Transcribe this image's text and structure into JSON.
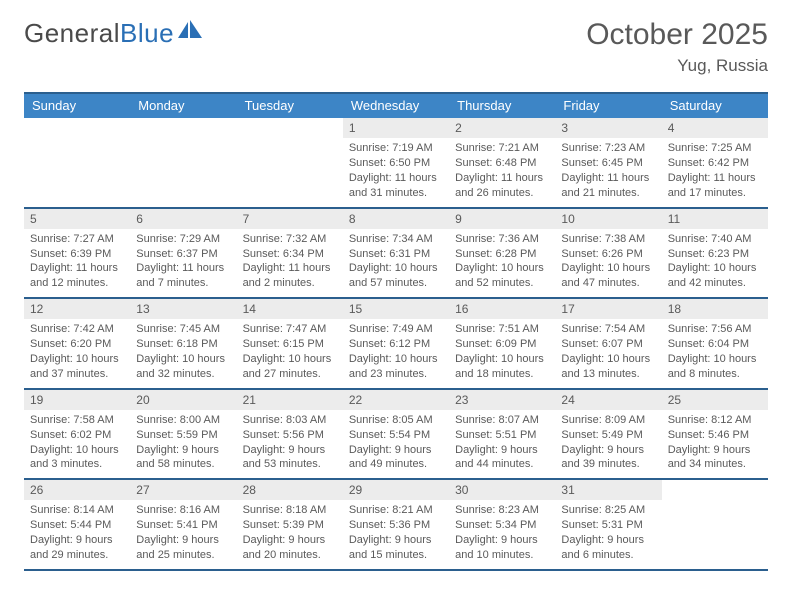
{
  "brand": {
    "part1": "General",
    "part2": "Blue"
  },
  "title": "October 2025",
  "location": "Yug, Russia",
  "colors": {
    "header_blue": "#3d85c6",
    "row_divider": "#2b5f8e",
    "light_grey": "#ececec",
    "text_grey": "#5a5a5a",
    "logo_blue": "#2a6fb5"
  },
  "dow": [
    "Sunday",
    "Monday",
    "Tuesday",
    "Wednesday",
    "Thursday",
    "Friday",
    "Saturday"
  ],
  "weeks": [
    [
      null,
      null,
      null,
      {
        "n": "1",
        "sr": "Sunrise: 7:19 AM",
        "ss": "Sunset: 6:50 PM",
        "d1": "Daylight: 11 hours",
        "d2": "and 31 minutes."
      },
      {
        "n": "2",
        "sr": "Sunrise: 7:21 AM",
        "ss": "Sunset: 6:48 PM",
        "d1": "Daylight: 11 hours",
        "d2": "and 26 minutes."
      },
      {
        "n": "3",
        "sr": "Sunrise: 7:23 AM",
        "ss": "Sunset: 6:45 PM",
        "d1": "Daylight: 11 hours",
        "d2": "and 21 minutes."
      },
      {
        "n": "4",
        "sr": "Sunrise: 7:25 AM",
        "ss": "Sunset: 6:42 PM",
        "d1": "Daylight: 11 hours",
        "d2": "and 17 minutes."
      }
    ],
    [
      {
        "n": "5",
        "sr": "Sunrise: 7:27 AM",
        "ss": "Sunset: 6:39 PM",
        "d1": "Daylight: 11 hours",
        "d2": "and 12 minutes."
      },
      {
        "n": "6",
        "sr": "Sunrise: 7:29 AM",
        "ss": "Sunset: 6:37 PM",
        "d1": "Daylight: 11 hours",
        "d2": "and 7 minutes."
      },
      {
        "n": "7",
        "sr": "Sunrise: 7:32 AM",
        "ss": "Sunset: 6:34 PM",
        "d1": "Daylight: 11 hours",
        "d2": "and 2 minutes."
      },
      {
        "n": "8",
        "sr": "Sunrise: 7:34 AM",
        "ss": "Sunset: 6:31 PM",
        "d1": "Daylight: 10 hours",
        "d2": "and 57 minutes."
      },
      {
        "n": "9",
        "sr": "Sunrise: 7:36 AM",
        "ss": "Sunset: 6:28 PM",
        "d1": "Daylight: 10 hours",
        "d2": "and 52 minutes."
      },
      {
        "n": "10",
        "sr": "Sunrise: 7:38 AM",
        "ss": "Sunset: 6:26 PM",
        "d1": "Daylight: 10 hours",
        "d2": "and 47 minutes."
      },
      {
        "n": "11",
        "sr": "Sunrise: 7:40 AM",
        "ss": "Sunset: 6:23 PM",
        "d1": "Daylight: 10 hours",
        "d2": "and 42 minutes."
      }
    ],
    [
      {
        "n": "12",
        "sr": "Sunrise: 7:42 AM",
        "ss": "Sunset: 6:20 PM",
        "d1": "Daylight: 10 hours",
        "d2": "and 37 minutes."
      },
      {
        "n": "13",
        "sr": "Sunrise: 7:45 AM",
        "ss": "Sunset: 6:18 PM",
        "d1": "Daylight: 10 hours",
        "d2": "and 32 minutes."
      },
      {
        "n": "14",
        "sr": "Sunrise: 7:47 AM",
        "ss": "Sunset: 6:15 PM",
        "d1": "Daylight: 10 hours",
        "d2": "and 27 minutes."
      },
      {
        "n": "15",
        "sr": "Sunrise: 7:49 AM",
        "ss": "Sunset: 6:12 PM",
        "d1": "Daylight: 10 hours",
        "d2": "and 23 minutes."
      },
      {
        "n": "16",
        "sr": "Sunrise: 7:51 AM",
        "ss": "Sunset: 6:09 PM",
        "d1": "Daylight: 10 hours",
        "d2": "and 18 minutes."
      },
      {
        "n": "17",
        "sr": "Sunrise: 7:54 AM",
        "ss": "Sunset: 6:07 PM",
        "d1": "Daylight: 10 hours",
        "d2": "and 13 minutes."
      },
      {
        "n": "18",
        "sr": "Sunrise: 7:56 AM",
        "ss": "Sunset: 6:04 PM",
        "d1": "Daylight: 10 hours",
        "d2": "and 8 minutes."
      }
    ],
    [
      {
        "n": "19",
        "sr": "Sunrise: 7:58 AM",
        "ss": "Sunset: 6:02 PM",
        "d1": "Daylight: 10 hours",
        "d2": "and 3 minutes."
      },
      {
        "n": "20",
        "sr": "Sunrise: 8:00 AM",
        "ss": "Sunset: 5:59 PM",
        "d1": "Daylight: 9 hours",
        "d2": "and 58 minutes."
      },
      {
        "n": "21",
        "sr": "Sunrise: 8:03 AM",
        "ss": "Sunset: 5:56 PM",
        "d1": "Daylight: 9 hours",
        "d2": "and 53 minutes."
      },
      {
        "n": "22",
        "sr": "Sunrise: 8:05 AM",
        "ss": "Sunset: 5:54 PM",
        "d1": "Daylight: 9 hours",
        "d2": "and 49 minutes."
      },
      {
        "n": "23",
        "sr": "Sunrise: 8:07 AM",
        "ss": "Sunset: 5:51 PM",
        "d1": "Daylight: 9 hours",
        "d2": "and 44 minutes."
      },
      {
        "n": "24",
        "sr": "Sunrise: 8:09 AM",
        "ss": "Sunset: 5:49 PM",
        "d1": "Daylight: 9 hours",
        "d2": "and 39 minutes."
      },
      {
        "n": "25",
        "sr": "Sunrise: 8:12 AM",
        "ss": "Sunset: 5:46 PM",
        "d1": "Daylight: 9 hours",
        "d2": "and 34 minutes."
      }
    ],
    [
      {
        "n": "26",
        "sr": "Sunrise: 8:14 AM",
        "ss": "Sunset: 5:44 PM",
        "d1": "Daylight: 9 hours",
        "d2": "and 29 minutes."
      },
      {
        "n": "27",
        "sr": "Sunrise: 8:16 AM",
        "ss": "Sunset: 5:41 PM",
        "d1": "Daylight: 9 hours",
        "d2": "and 25 minutes."
      },
      {
        "n": "28",
        "sr": "Sunrise: 8:18 AM",
        "ss": "Sunset: 5:39 PM",
        "d1": "Daylight: 9 hours",
        "d2": "and 20 minutes."
      },
      {
        "n": "29",
        "sr": "Sunrise: 8:21 AM",
        "ss": "Sunset: 5:36 PM",
        "d1": "Daylight: 9 hours",
        "d2": "and 15 minutes."
      },
      {
        "n": "30",
        "sr": "Sunrise: 8:23 AM",
        "ss": "Sunset: 5:34 PM",
        "d1": "Daylight: 9 hours",
        "d2": "and 10 minutes."
      },
      {
        "n": "31",
        "sr": "Sunrise: 8:25 AM",
        "ss": "Sunset: 5:31 PM",
        "d1": "Daylight: 9 hours",
        "d2": "and 6 minutes."
      },
      null
    ]
  ]
}
